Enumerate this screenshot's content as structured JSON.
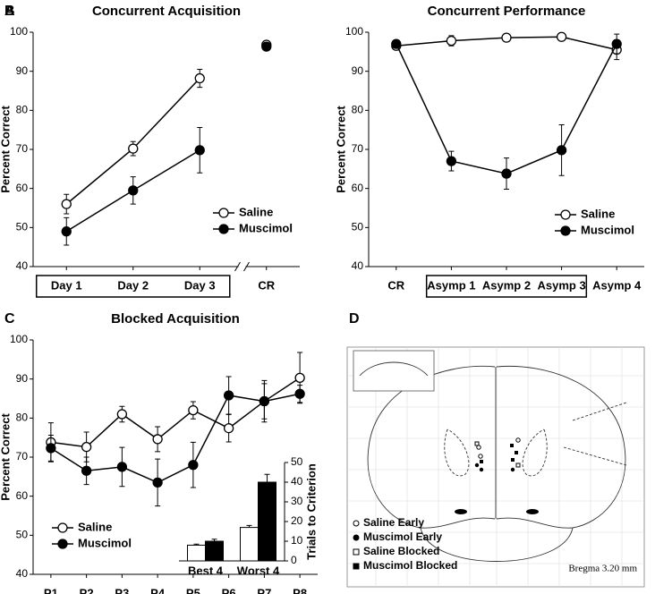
{
  "chart_data": [
    {
      "type": "line",
      "panel_label": "A",
      "title": "Concurrent Acquisition",
      "ylabel": "Percent Correct",
      "categories": [
        "Day 1",
        "Day 2",
        "Day 3",
        "CR"
      ],
      "series": [
        {
          "name": "Saline",
          "color": "#ffffff",
          "values": [
            56,
            70.2,
            88.2,
            96.8
          ],
          "errors": [
            2.5,
            1.8,
            2.3,
            0.5
          ]
        },
        {
          "name": "Muscimol",
          "color": "#000000",
          "values": [
            49,
            59.5,
            69.8,
            96.3
          ],
          "errors": [
            3.5,
            3.5,
            5.8,
            0.5
          ]
        }
      ],
      "ylim": [
        40,
        100
      ],
      "yticks": [
        40,
        50,
        60,
        70,
        80,
        90,
        100
      ],
      "grid": false,
      "legend": "lower right",
      "axis_break_after": 2,
      "boxed_categories": [
        0,
        2
      ]
    },
    {
      "type": "line",
      "panel_label": "B",
      "title": "Concurrent Performance",
      "ylabel": "Percent Correct",
      "categories": [
        "CR",
        "Asymp 1",
        "Asymp 2",
        "Asymp 3",
        "Asymp 4"
      ],
      "series": [
        {
          "name": "Saline",
          "color": "#ffffff",
          "values": [
            96.5,
            97.8,
            98.6,
            98.8,
            95.5
          ],
          "errors": [
            0.5,
            1.3,
            0.5,
            0.5,
            2.5
          ]
        },
        {
          "name": "Muscimol",
          "color": "#000000",
          "values": [
            97,
            67,
            63.8,
            69.8,
            97
          ],
          "errors": [
            0.5,
            2.5,
            4,
            6.5,
            2.5
          ]
        }
      ],
      "ylim": [
        40,
        100
      ],
      "yticks": [
        40,
        50,
        60,
        70,
        80,
        90,
        100
      ],
      "grid": false,
      "legend": "lower right",
      "boxed_categories": [
        1,
        3
      ]
    },
    {
      "type": "line",
      "panel_label": "C",
      "title": "Blocked Acquisition",
      "ylabel": "Percent Correct",
      "categories": [
        "P1",
        "P2",
        "P3",
        "P4",
        "P5",
        "P6",
        "P7",
        "P8"
      ],
      "series": [
        {
          "name": "Saline",
          "color": "#ffffff",
          "values": [
            73.8,
            72.6,
            81,
            74.6,
            82,
            77.4,
            84.3,
            90.3
          ],
          "errors": [
            5,
            3.8,
            2,
            3.2,
            2.2,
            3.5,
            4.5,
            6.5
          ]
        },
        {
          "name": "Muscimol",
          "color": "#000000",
          "values": [
            72.3,
            66.5,
            67.5,
            63.5,
            68,
            85.8,
            84.3,
            86.2
          ],
          "errors": [
            3.3,
            3.5,
            5,
            6,
            5.8,
            4.8,
            5.3,
            2.2
          ]
        }
      ],
      "ylim": [
        40,
        100
      ],
      "yticks": [
        40,
        50,
        60,
        70,
        80,
        90,
        100
      ],
      "grid": false,
      "legend": "lower left",
      "inset": {
        "type": "bar",
        "ylabel": "Trials to Criterion",
        "categories": [
          "Best 4",
          "Worst 4"
        ],
        "series": [
          {
            "name": "Saline",
            "color": "#ffffff",
            "values": [
              8,
              17
            ],
            "errors": [
              0.5,
              1
            ]
          },
          {
            "name": "Muscimol",
            "color": "#000000",
            "values": [
              10,
              40
            ],
            "errors": [
              1,
              4
            ]
          }
        ],
        "ylim": [
          0,
          50
        ],
        "yticks": [
          0,
          10,
          20,
          30,
          40,
          50
        ]
      }
    },
    {
      "type": "diagram",
      "panel_label": "D",
      "annotation": "Bregma 3.20 mm",
      "legend_entries": [
        "Saline Early",
        "Muscimol Early",
        "Saline Blocked",
        "Muscimol Blocked"
      ]
    }
  ]
}
